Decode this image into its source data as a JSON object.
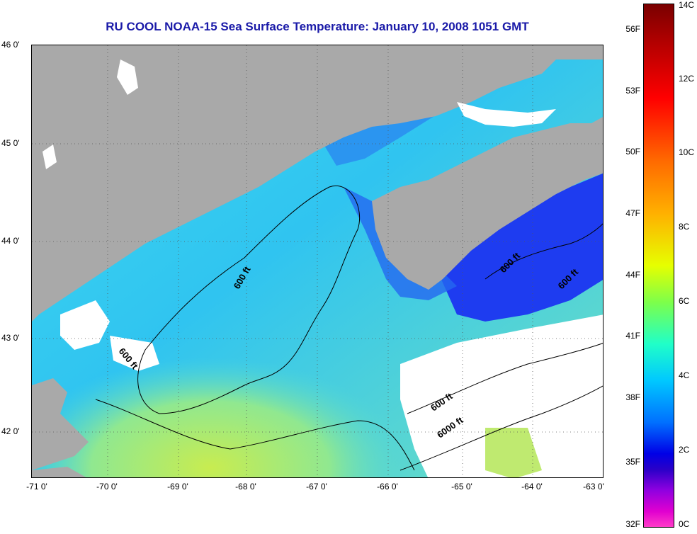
{
  "title": "RU COOL  NOAA-15  Sea Surface Temperature:  January 10, 2008 1051 GMT",
  "lat_ticks": [
    "46 0'",
    "45 0'",
    "44 0'",
    "43 0'",
    "42 0'"
  ],
  "lon_ticks": [
    "-71 0'",
    "-70 0'",
    "-69 0'",
    "-68 0'",
    "-67 0'",
    "-66 0'",
    "-65 0'",
    "-64 0'",
    "-63 0'"
  ],
  "contour_labels": [
    "600 ft",
    "600 ft",
    "600 ft",
    "600 ft",
    "600 ft",
    "6000 ft"
  ],
  "colorbar": {
    "fahrenheit": [
      "56F",
      "53F",
      "50F",
      "47F",
      "44F",
      "41F",
      "38F",
      "35F",
      "32F"
    ],
    "celsius": [
      "14C",
      "12C",
      "10C",
      "8C",
      "6C",
      "4C",
      "2C",
      "0C"
    ]
  },
  "colors": {
    "land": "#a9a9a9",
    "cloud": "#ffffff",
    "cold_water": "#1a3cf0",
    "mid_water": "#2ec8f0",
    "warm_water": "#b8e860",
    "title": "#1a1aa8"
  }
}
